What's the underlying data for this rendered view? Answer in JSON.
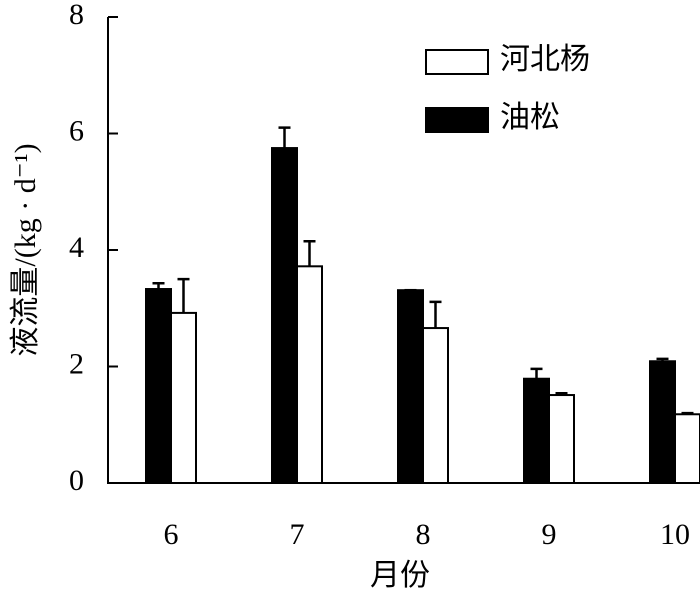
{
  "chart_data": {
    "type": "bar",
    "xlabel": "月份",
    "ylabel": "液流量/(kg · d⁻¹)",
    "categories": [
      "6",
      "7",
      "8",
      "9",
      "10"
    ],
    "series": [
      {
        "name": "油松",
        "color": "#000000",
        "values": [
          3.33,
          5.75,
          3.31,
          1.79,
          2.09
        ],
        "errors": [
          0.1,
          0.35,
          0,
          0.17,
          0.04
        ]
      },
      {
        "name": "河北杨",
        "color": "#ffffff",
        "values": [
          2.92,
          3.72,
          2.66,
          1.51,
          1.18
        ],
        "errors": [
          0.58,
          0.43,
          0.45,
          0.03,
          0.02
        ]
      }
    ],
    "legend_order": [
      1,
      0
    ],
    "ylim": [
      0,
      8
    ],
    "yticks": [
      0,
      2,
      4,
      6,
      8
    ]
  }
}
